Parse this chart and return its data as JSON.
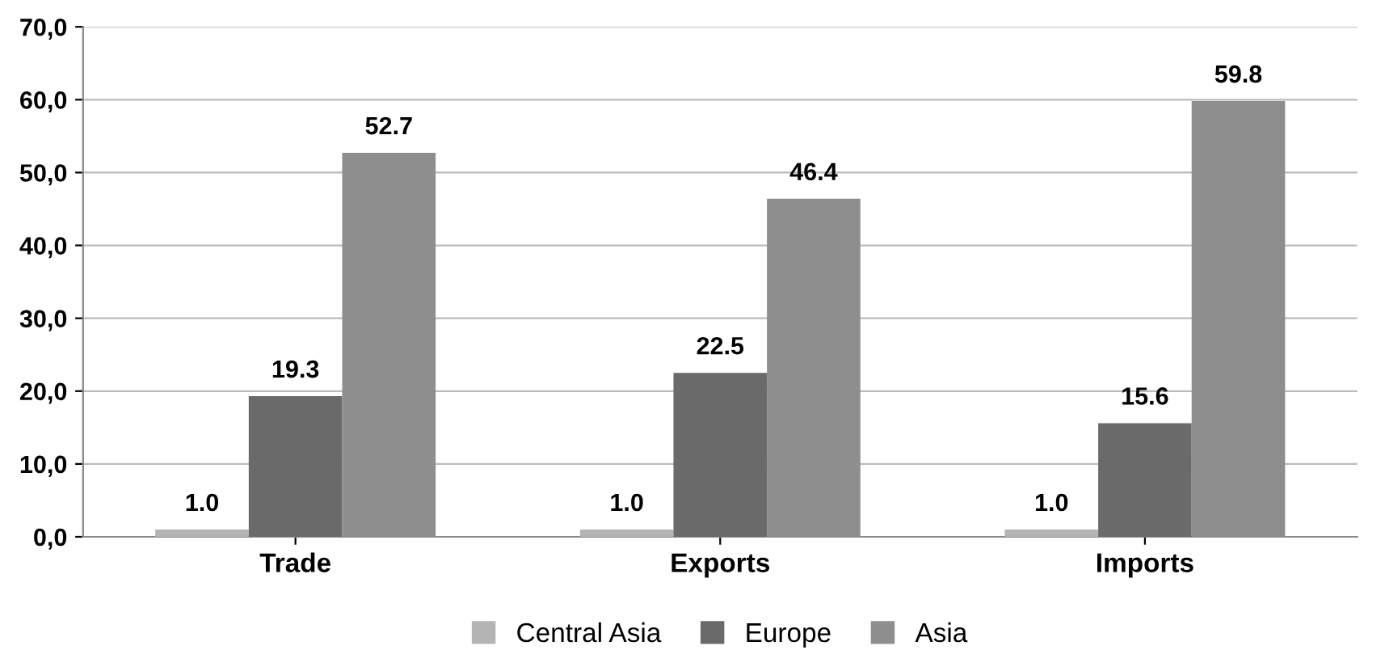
{
  "chart_data": {
    "type": "bar",
    "categories": [
      "Trade",
      "Exports",
      "Imports"
    ],
    "series": [
      {
        "name": "Central Asia",
        "color": "#b4b4b4",
        "values": [
          1.0,
          1.0,
          1.0
        ],
        "value_labels": [
          "1.0",
          "1.0",
          "1.0"
        ]
      },
      {
        "name": "Europe",
        "color": "#6a6a6a",
        "values": [
          19.3,
          22.5,
          15.6
        ],
        "value_labels": [
          "19.3",
          "22.5",
          "15.6"
        ]
      },
      {
        "name": "Asia",
        "color": "#8e8e8e",
        "values": [
          52.7,
          46.4,
          59.8
        ],
        "value_labels": [
          "52.7",
          "46.4",
          "59.8"
        ]
      }
    ],
    "ylim": [
      0,
      70
    ],
    "yticks": [
      {
        "value": 0,
        "label": "0,0"
      },
      {
        "value": 10,
        "label": "10,0"
      },
      {
        "value": 20,
        "label": "20,0"
      },
      {
        "value": 30,
        "label": "30,0"
      },
      {
        "value": 40,
        "label": "40,0"
      },
      {
        "value": 50,
        "label": "50,0"
      },
      {
        "value": 60,
        "label": "60,0"
      },
      {
        "value": 70,
        "label": "70,0"
      }
    ],
    "grid": "y",
    "legend": "bottom"
  }
}
